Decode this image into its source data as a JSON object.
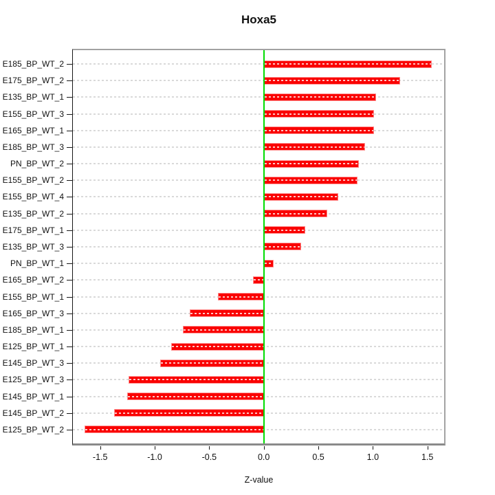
{
  "figure": {
    "title": "Hoxa5",
    "xlabel": "Z-value"
  },
  "chart_data": {
    "type": "bar",
    "orientation": "horizontal",
    "title": "Hoxa5",
    "xlabel": "Z-value",
    "ylabel": "",
    "categories": [
      "E185_BP_WT_2",
      "E175_BP_WT_2",
      "E135_BP_WT_1",
      "E155_BP_WT_3",
      "E165_BP_WT_1",
      "E185_BP_WT_3",
      "PN_BP_WT_2",
      "E155_BP_WT_2",
      "E155_BP_WT_4",
      "E135_BP_WT_2",
      "E175_BP_WT_1",
      "E135_BP_WT_3",
      "PN_BP_WT_1",
      "E165_BP_WT_2",
      "E155_BP_WT_1",
      "E165_BP_WT_3",
      "E185_BP_WT_1",
      "E125_BP_WT_1",
      "E145_BP_WT_3",
      "E125_BP_WT_3",
      "E145_BP_WT_1",
      "E145_BP_WT_2",
      "E125_BP_WT_2"
    ],
    "values": [
      1.54,
      1.25,
      1.03,
      1.01,
      1.01,
      0.93,
      0.87,
      0.86,
      0.68,
      0.58,
      0.38,
      0.34,
      0.09,
      -0.1,
      -0.42,
      -0.68,
      -0.74,
      -0.85,
      -0.95,
      -1.24,
      -1.25,
      -1.37,
      -1.64
    ],
    "x_ticks": [
      -1.5,
      -1.0,
      -0.5,
      0.0,
      0.5,
      1.0,
      1.5
    ],
    "x_tick_labels": [
      "-1.5",
      "-1.0",
      "-0.5",
      "0.0",
      "0.5",
      "1.0",
      "1.5"
    ],
    "xlim": [
      -1.76,
      1.66
    ],
    "bar_color": "#fa0000",
    "zero_line_color": "#00dc00",
    "grid": true,
    "grid_style": "dashed",
    "grid_color": "#d9d9d9",
    "legend": "none"
  }
}
